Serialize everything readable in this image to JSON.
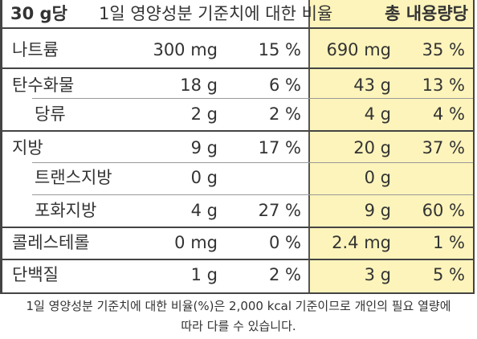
{
  "header": {
    "serving": "30 g당",
    "reference": "1일 영양성분 기준치에 대한 비율",
    "total": "총 내용량당"
  },
  "rows": [
    {
      "name": "나트륨",
      "amount": "300 mg",
      "percent": "15 %",
      "total_amount": "690 mg",
      "total_percent": "35 %"
    },
    {
      "name": "탄수화물",
      "amount": "18 g",
      "percent": "6 %",
      "total_amount": "43 g",
      "total_percent": "13 %"
    },
    {
      "name": "당류",
      "amount": "2 g",
      "percent": "2 %",
      "total_amount": "4 g",
      "total_percent": "4 %"
    },
    {
      "name": "지방",
      "amount": "9 g",
      "percent": "17 %",
      "total_amount": "20 g",
      "total_percent": "37 %"
    },
    {
      "name": "트랜스지방",
      "amount": "0 g",
      "percent": "",
      "total_amount": "0 g",
      "total_percent": ""
    },
    {
      "name": "포화지방",
      "amount": "4 g",
      "percent": "27 %",
      "total_amount": "9 g",
      "total_percent": "60 %"
    },
    {
      "name": "콜레스테롤",
      "amount": "0 mg",
      "percent": "0 %",
      "total_amount": "2.4 mg",
      "total_percent": "1 %"
    },
    {
      "name": "단백질",
      "amount": "1 g",
      "percent": "2 %",
      "total_amount": "3 g",
      "total_percent": "5 %"
    }
  ],
  "footnote": {
    "line1": "1일 영양성분 기준치에 대한 비율(%)은 2,000 kcal 기준이므로 개인의 필요 열량에",
    "line2": "따라 다를 수 있습니다."
  },
  "colors": {
    "total_column_bg": "#fdf4bb",
    "border": "#444444"
  }
}
